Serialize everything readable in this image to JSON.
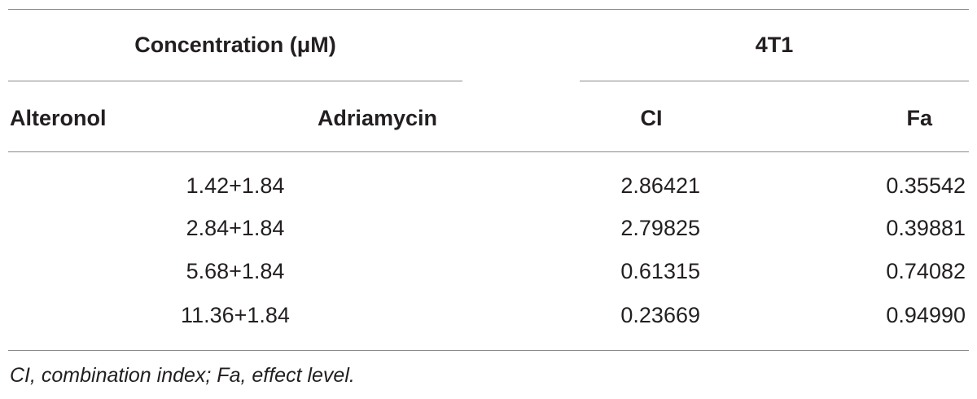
{
  "table": {
    "group_headers": {
      "concentration": "Concentration (μM)",
      "cell_line": "4T1"
    },
    "columns": {
      "alteronol": "Alteronol",
      "adriamycin": "Adriamycin",
      "ci": "CI",
      "fa": "Fa"
    },
    "rows": [
      {
        "concentration": "1.42+1.84",
        "ci": "2.86421",
        "fa": "0.35542"
      },
      {
        "concentration": "2.84+1.84",
        "ci": "2.79825",
        "fa": "0.39881"
      },
      {
        "concentration": "5.68+1.84",
        "ci": "0.61315",
        "fa": "0.74082"
      },
      {
        "concentration": "11.36+1.84",
        "ci": "0.23669",
        "fa": "0.94990"
      }
    ],
    "footnote": "CI, combination index; Fa, effect level."
  }
}
